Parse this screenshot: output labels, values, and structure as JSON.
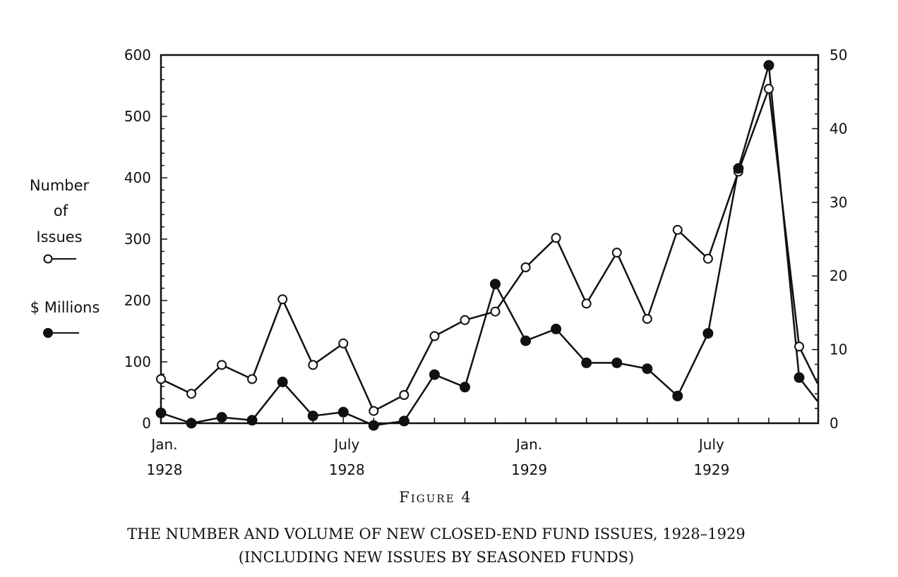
{
  "chart_data": {
    "type": "line",
    "title": "",
    "figure_label": "Figure 4",
    "caption_line1": "THE NUMBER AND VOLUME OF NEW CLOSED-END FUND ISSUES, 1928–1929",
    "caption_line2": "(INCLUDING NEW ISSUES BY SEASONED FUNDS)",
    "x_tick_labels": [
      {
        "month": "Jan.",
        "year": "1928",
        "x": "1928-01"
      },
      {
        "month": "July",
        "year": "1928",
        "x": "1928-07"
      },
      {
        "month": "Jan.",
        "year": "1929",
        "x": "1929-01"
      },
      {
        "month": "July",
        "year": "1929",
        "x": "1929-07"
      }
    ],
    "x_range": [
      "1928-01",
      "1929-10"
    ],
    "y_left": {
      "range": [
        0,
        600
      ],
      "ticks": [
        0,
        100,
        200,
        300,
        400,
        500,
        600
      ]
    },
    "y_right": {
      "range": [
        0,
        50
      ],
      "ticks": [
        0,
        10,
        20,
        30,
        40,
        50
      ]
    },
    "grid": false,
    "legend": {
      "placement": "left",
      "entries": [
        {
          "line1": "Number",
          "line2": "of",
          "line3": "Issues",
          "marker": "open-circle",
          "axis": "left"
        },
        {
          "line1": "$ Millions",
          "marker": "filled-circle",
          "axis": "right"
        }
      ]
    },
    "x": [
      "1928-01",
      "1928-02",
      "1928-03",
      "1928-04",
      "1928-05",
      "1928-06",
      "1928-07",
      "1928-08",
      "1928-09",
      "1928-10",
      "1928-11",
      "1928-12",
      "1929-01",
      "1929-02",
      "1929-03",
      "1929-04",
      "1929-05",
      "1929-06",
      "1929-07",
      "1929-08",
      "1929-09",
      "1929-10"
    ],
    "series": [
      {
        "axis": "left",
        "marker": "open-circle",
        "values": [
          72,
          48,
          95,
          72,
          202,
          95,
          130,
          20,
          46,
          142,
          168,
          182,
          254,
          302,
          195,
          278,
          170,
          315,
          268,
          410,
          545,
          125
        ],
        "tail": {
          "x": "1929-10.6",
          "value": 65
        }
      },
      {
        "axis": "right",
        "marker": "filled-circle",
        "values": [
          1.4,
          0.0,
          0.8,
          0.4,
          5.6,
          1.0,
          1.5,
          -0.3,
          0.3,
          6.6,
          4.9,
          18.9,
          11.2,
          12.8,
          8.2,
          8.2,
          7.4,
          3.7,
          12.2,
          34.6,
          48.6,
          6.2
        ],
        "tail": {
          "x": "1929-10.6",
          "value": 3.0
        }
      }
    ],
    "style": {
      "line_color": "#111111",
      "background": "#ffffff"
    }
  }
}
